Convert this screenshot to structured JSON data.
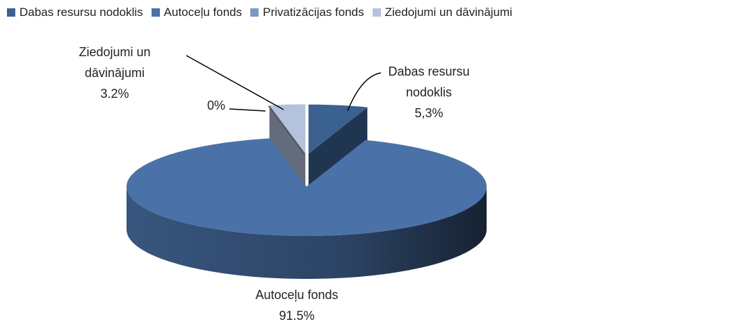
{
  "chart_data": {
    "type": "pie3d",
    "categories": [
      "Dabas resursu nodoklis",
      "Autoceļu fonds",
      "Privatizācijas fonds",
      "Ziedojumi un dāvinājumi"
    ],
    "values": [
      5.3,
      91.5,
      0,
      3.2
    ],
    "value_labels": [
      "5,3%",
      "91.5%",
      "0%",
      "3.2%"
    ],
    "colors": [
      "#3b6190",
      "#4a72a8",
      "#7b97c6",
      "#b5c2dd"
    ],
    "legend": "top"
  }
}
